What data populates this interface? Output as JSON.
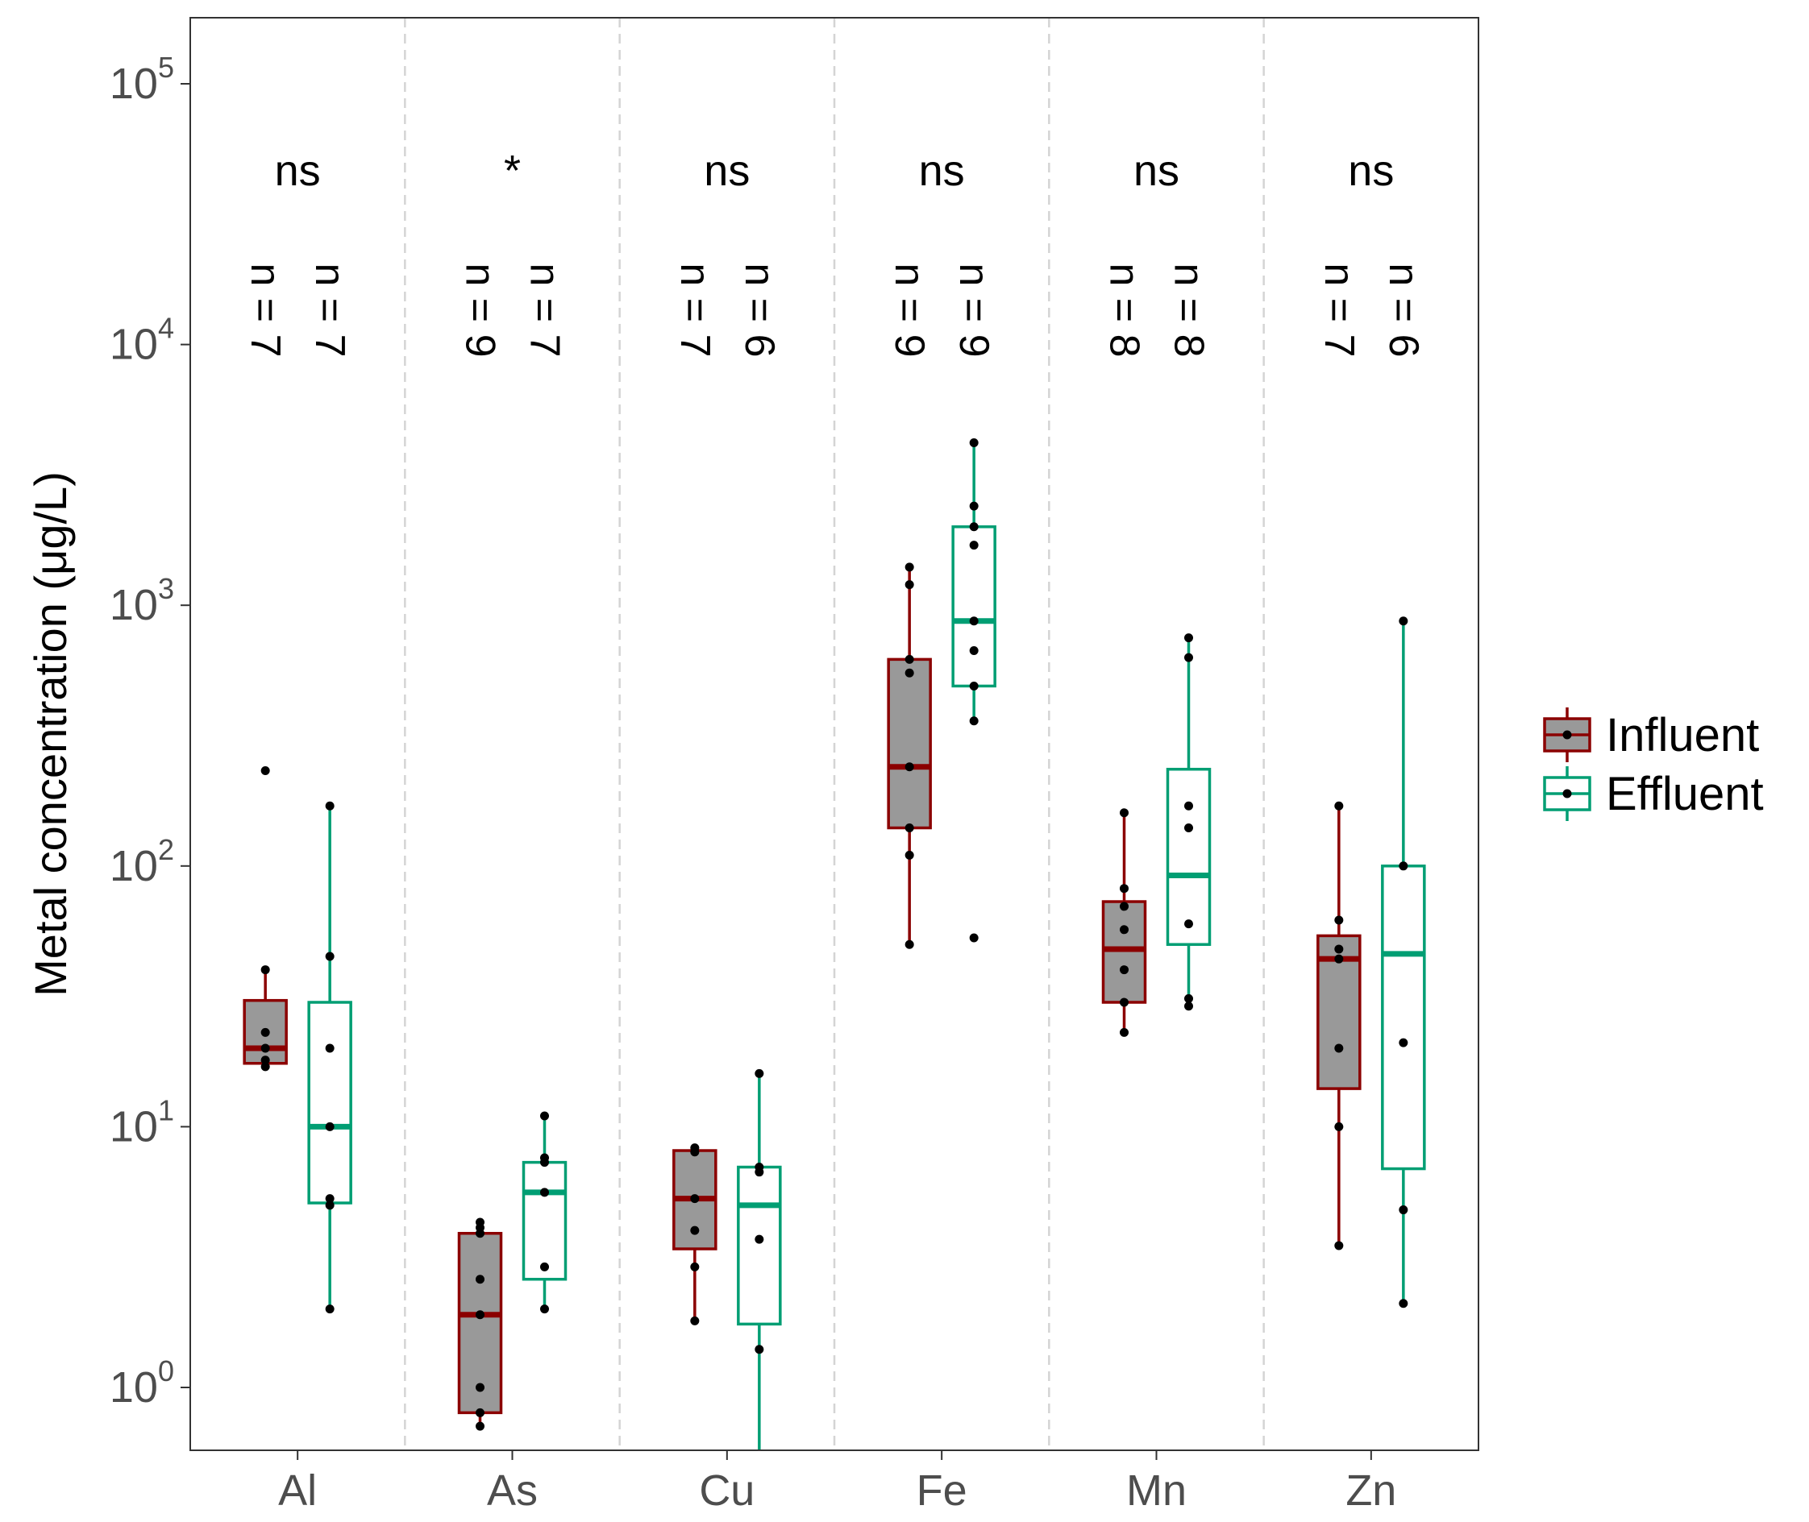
{
  "chart_data": {
    "type": "box",
    "title": "",
    "ylabel": "Metal concentration  (μg/L)",
    "xlabel": "",
    "y_scale": "log10",
    "ylim": [
      0.56,
      160000
    ],
    "y_ticks": [
      1,
      10,
      100,
      1000,
      10000,
      100000
    ],
    "y_tick_labels": [
      {
        "base": "10",
        "exp": "0"
      },
      {
        "base": "10",
        "exp": "1"
      },
      {
        "base": "10",
        "exp": "2"
      },
      {
        "base": "10",
        "exp": "3"
      },
      {
        "base": "10",
        "exp": "4"
      },
      {
        "base": "10",
        "exp": "5"
      }
    ],
    "categories": [
      "Al",
      "As",
      "Cu",
      "Fe",
      "Mn",
      "Zn"
    ],
    "significance": [
      "ns",
      "*",
      "ns",
      "ns",
      "ns",
      "ns"
    ],
    "grid": "vertical dashed separators between categories",
    "legend_position": "right",
    "series": [
      {
        "name": "Influent",
        "color": "#8B0000",
        "fill": "#999999",
        "n_labels": [
          "n = 7",
          "n = 9",
          "n = 7",
          "n = 9",
          "n = 8",
          "n = 7"
        ],
        "boxes": [
          {
            "min": 17,
            "q1": 17.5,
            "median": 20,
            "q3": 30.5,
            "max": 40,
            "points": [
              17,
              18,
              20,
              23,
              40,
              232
            ]
          },
          {
            "min": 0.71,
            "q1": 0.8,
            "median": 1.9,
            "q3": 3.9,
            "max": 4.3,
            "points": [
              0.71,
              0.8,
              1.0,
              1.9,
              2.6,
              3.9,
              4.1,
              4.3
            ]
          },
          {
            "min": 1.8,
            "q1": 3.4,
            "median": 5.3,
            "q3": 8.1,
            "max": 8.4,
            "points": [
              1.8,
              2.9,
              4.0,
              5.3,
              8.0,
              8.3
            ]
          },
          {
            "min": 50,
            "q1": 140,
            "median": 240,
            "q3": 620,
            "max": 1400,
            "points": [
              50,
              110,
              140,
              240,
              550,
              620,
              1200,
              1400
            ]
          },
          {
            "min": 23,
            "q1": 30,
            "median": 48,
            "q3": 73,
            "max": 160,
            "points": [
              23,
              30,
              40,
              57,
              70,
              82,
              160
            ]
          },
          {
            "min": 3.5,
            "q1": 14,
            "median": 44,
            "q3": 54,
            "max": 170,
            "points": [
              3.5,
              10,
              20,
              44,
              48,
              62,
              170
            ]
          }
        ]
      },
      {
        "name": "Effluent",
        "color": "#009E73",
        "fill": "#FFFFFF",
        "n_labels": [
          "n = 7",
          "n = 7",
          "n = 6",
          "n = 9",
          "n = 8",
          "n = 6"
        ],
        "boxes": [
          {
            "min": 2.0,
            "q1": 5.1,
            "median": 10,
            "q3": 30,
            "max": 170,
            "points": [
              2.0,
              5.0,
              5.3,
              10,
              20,
              45,
              170
            ]
          },
          {
            "min": 2.0,
            "q1": 2.6,
            "median": 5.6,
            "q3": 7.3,
            "max": 11,
            "points": [
              2.0,
              2.9,
              5.6,
              7.3,
              7.6,
              11
            ]
          },
          {
            "min": 0.56,
            "q1": 1.75,
            "median": 5.0,
            "q3": 7.0,
            "max": 16,
            "points": [
              1.4,
              3.7,
              6.7,
              7.0,
              16
            ]
          },
          {
            "min": 360,
            "q1": 490,
            "median": 870,
            "q3": 2000,
            "max": 4200,
            "points": [
              53,
              360,
              490,
              670,
              870,
              1700,
              2000,
              2400,
              4200
            ]
          },
          {
            "min": 29,
            "q1": 50,
            "median": 92,
            "q3": 235,
            "max": 750,
            "points": [
              29,
              31,
              60,
              140,
              170,
              630,
              750
            ]
          },
          {
            "min": 2.1,
            "q1": 6.9,
            "median": 46,
            "q3": 100,
            "max": 870,
            "points": [
              2.1,
              4.8,
              21,
              100,
              870
            ]
          }
        ]
      }
    ]
  }
}
